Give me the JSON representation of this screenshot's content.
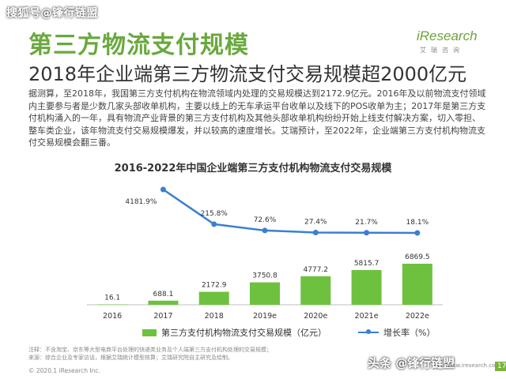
{
  "header": {
    "watermark": "搜狐号@锋行链盟",
    "logo_main": "iResearch",
    "logo_sub": "艾瑞咨询",
    "title": "第三方物流支付规模",
    "subtitle": "2018年企业端第三方物流支付交易规模超2000亿元"
  },
  "body_text": "据测算，至2018年，我国第三方支付机构在物流领域内处理的交易规模达到2172.9亿元。2016年及以前物流支付领域内主要参与者是少数几家头部收单机构，主要以线上的无车承运平台收单以及线下的POS收单为主；2017年是第三方支付机构涌入的一年，具有物流产业背景的第三方支付机构及其他头部收单机构纷纷开始上线支付解决方案，切入零担、整车类企业，该年物流支付交易规模爆发，并以较高的速度增长。艾瑞预计，至2022年，企业端第三方支付机构物流支付交易规模会翻三番。",
  "chart_data": {
    "type": "bar",
    "title": "2016-2022年中国企业端第三方支付机构物流支付交易规模",
    "categories": [
      "2016",
      "2017",
      "2018",
      "2019e",
      "2020e",
      "2021e",
      "2022e"
    ],
    "series": [
      {
        "name": "第三方支付机构物流支付交易规模（亿元）",
        "type": "bar",
        "values": [
          16.1,
          688.1,
          2172.9,
          3750.8,
          4777.2,
          5815.7,
          6869.5
        ],
        "labels": [
          "16.1",
          "688.1",
          "2172.9",
          "3750.8",
          "4777.2",
          "5815.7",
          "6869.5"
        ],
        "color": "#6ec13f"
      },
      {
        "name": "增长率（%）",
        "type": "line",
        "values": [
          null,
          4181.9,
          215.8,
          72.6,
          27.4,
          21.7,
          18.1
        ],
        "labels": [
          "",
          "4181.9%",
          "215.8%",
          "72.6%",
          "27.4%",
          "21.7%",
          "18.1%"
        ],
        "color": "#3a7fd0"
      }
    ],
    "legend_position": "bottom",
    "grid": false
  },
  "notes": {
    "line1": "注释：不含淘宝、京东等大型电商平台处理的快递类业务及个人端第三方支付机构处理的交易规模；",
    "line2": "来源：综合企业及专家访谈，根据艾瑞统计模型核算；艾瑞研究院自主研究及绘制。"
  },
  "footer": {
    "copyright": "© 2020.1 iResearch Inc.",
    "watermark": "头条 @锋行链盟",
    "url": "www.iresearch.com.cn",
    "page": "17"
  }
}
